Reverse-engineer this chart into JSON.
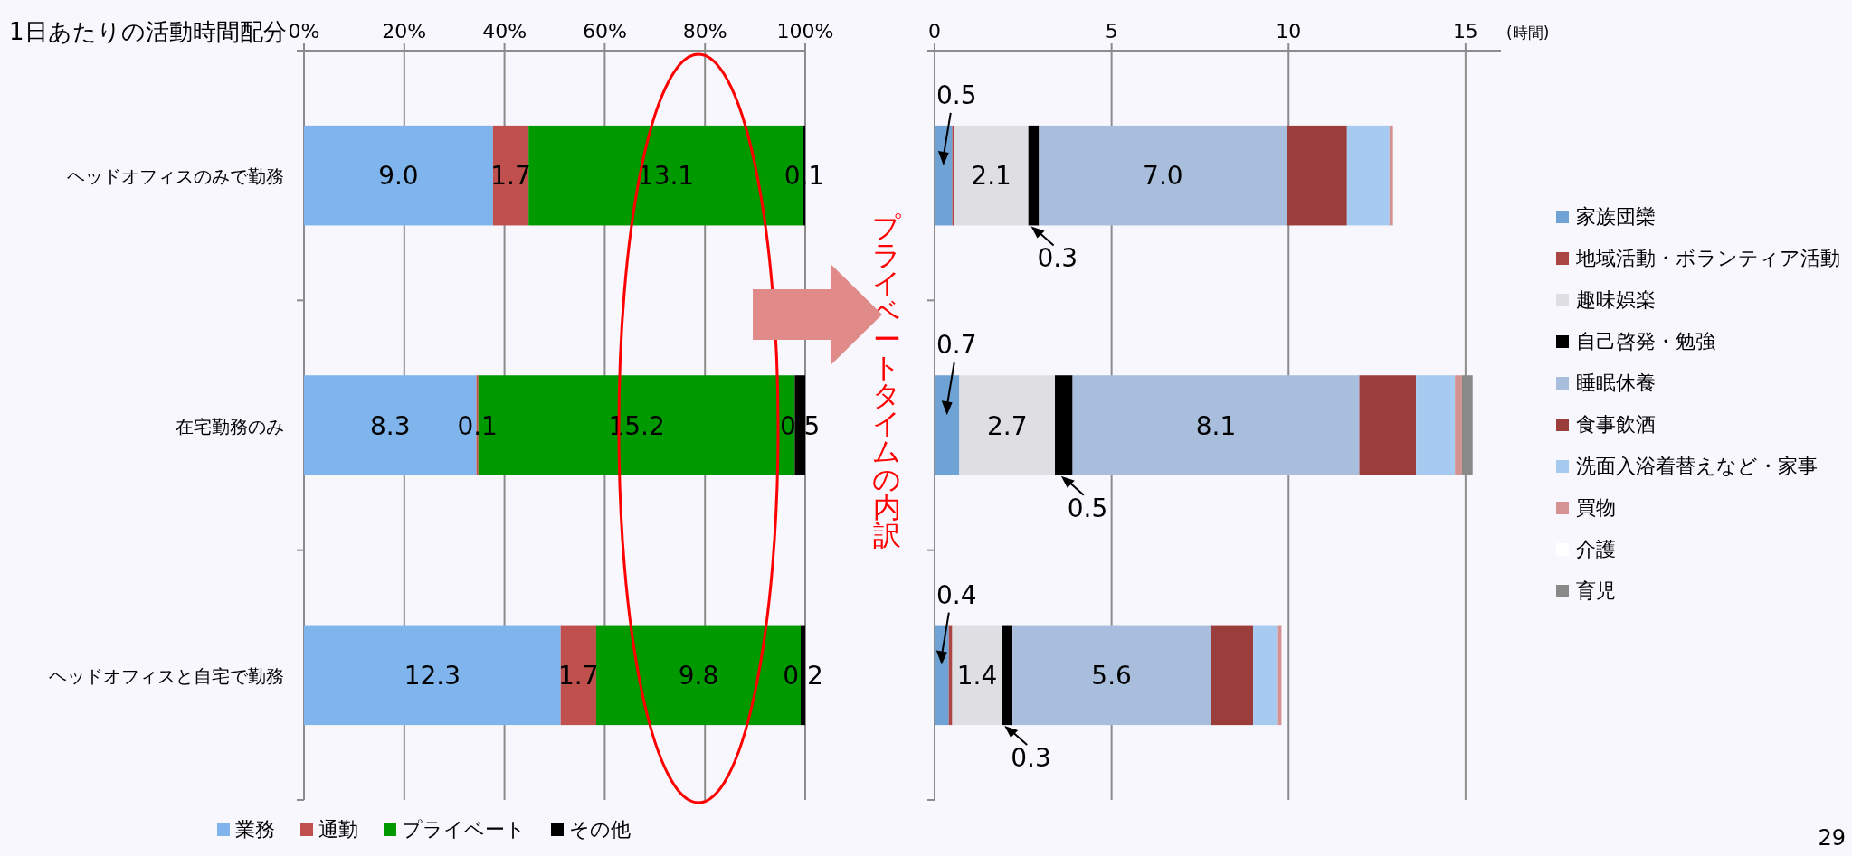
{
  "chart_data": [
    {
      "type": "bar",
      "orientation": "horizontal",
      "stacked": true,
      "title": "1日あたりの活動時間配分",
      "categories": [
        "ヘッドオフィスのみで勤務",
        "在宅勤務のみ",
        "ヘッドオフィスと自宅で勤務"
      ],
      "series": [
        {
          "name": "業務",
          "color": "#7fb5ec",
          "values": [
            37.7,
            34.4,
            51.2
          ]
        },
        {
          "name": "通勤",
          "color": "#c0504d",
          "values": [
            7.1,
            0.4,
            7.1
          ]
        },
        {
          "name": "プライベート",
          "color": "#009900",
          "values": [
            54.8,
            63.1,
            40.8
          ]
        },
        {
          "name": "その他",
          "color": "#000000",
          "values": [
            0.4,
            2.1,
            0.9
          ]
        }
      ],
      "annotations": [
        "9.0",
        "1.7",
        "13.1",
        "0.1",
        "8.3",
        "0.1",
        "15.2",
        "0.5",
        "12.3",
        "1.7",
        "9.8",
        "0.2"
      ],
      "xlim": [
        0,
        100
      ],
      "xticks": [
        {
          "value": 0,
          "label": "0%"
        },
        {
          "value": 20,
          "label": "20%"
        },
        {
          "value": 40,
          "label": "40%"
        },
        {
          "value": 60,
          "label": "60%"
        },
        {
          "value": 80,
          "label": "80%"
        },
        {
          "value": 100,
          "label": "100%"
        }
      ],
      "grid": "x",
      "legend": "bottom"
    },
    {
      "type": "bar",
      "orientation": "horizontal",
      "stacked": true,
      "xlabel": "(時間)",
      "categories": [
        null,
        null,
        null
      ],
      "series": [
        {
          "name": "家族団欒",
          "color": "#6fa3d6",
          "values": [
            0.5,
            0.7,
            0.4
          ],
          "value_labels": [
            "0.5",
            "0.7",
            "0.4"
          ]
        },
        {
          "name": "地域活動・ボランティア活動",
          "color": "#aa4644",
          "values": [
            0.05,
            0,
            0.1
          ]
        },
        {
          "name": "趣味娯楽",
          "color": "#dfdfe3",
          "values": [
            2.1,
            2.7,
            1.4
          ],
          "value_labels": [
            "2.1",
            "2.7",
            "1.4"
          ]
        },
        {
          "name": "自己啓発・勉強",
          "color": "#000000",
          "values": [
            0.3,
            0.5,
            0.3
          ],
          "value_labels": [
            "0.3",
            "0.5",
            "0.3"
          ]
        },
        {
          "name": "睡眠休養",
          "color": "#a9bedc",
          "values": [
            7.0,
            8.1,
            5.6
          ],
          "value_labels": [
            "7.0",
            "8.1",
            "5.6"
          ]
        },
        {
          "name": "食事飲酒",
          "color": "#9a3d3b",
          "values": [
            1.7,
            1.6,
            1.2
          ]
        },
        {
          "name": "洗面入浴着替えなど・家事",
          "color": "#a6caf0",
          "values": [
            1.2,
            1.1,
            0.7
          ]
        },
        {
          "name": "買物",
          "color": "#d49392",
          "values": [
            0.1,
            0.2,
            0.1
          ]
        },
        {
          "name": "介護",
          "color": "#ffffff",
          "values": [
            0,
            0,
            0
          ]
        },
        {
          "name": "育児",
          "color": "#898989",
          "values": [
            0,
            0.3,
            0
          ]
        }
      ],
      "xlim": [
        0,
        16
      ],
      "xticks": [
        0,
        5,
        10,
        15
      ],
      "grid": "x",
      "legend": "right",
      "tick_labels": "x",
      "annotations": [
        "プライベートタイムの内訳",
        "29"
      ]
    }
  ]
}
